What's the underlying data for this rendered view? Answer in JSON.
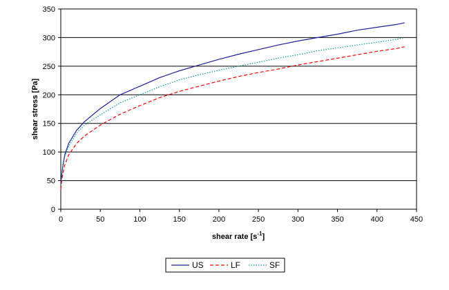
{
  "chart_data": {
    "type": "line",
    "title": "",
    "xlabel": "shear rate [s",
    "xlabel_sup": "-1",
    "xlabel_tail": "]",
    "ylabel": "shear stress [Pa]",
    "xlim": [
      0,
      450
    ],
    "ylim": [
      0,
      350
    ],
    "x_ticks": [
      "0",
      "50",
      "100",
      "150",
      "200",
      "250",
      "300",
      "350",
      "400",
      "450"
    ],
    "y_ticks": [
      "0",
      "50",
      "100",
      "150",
      "200",
      "250",
      "300",
      "350"
    ],
    "grid": "horizontal",
    "legend_position": "bottom",
    "series": [
      {
        "name": "US",
        "color": "#1f1f99",
        "style": "solid",
        "x": [
          0,
          2,
          5,
          10,
          20,
          30,
          50,
          75,
          100,
          125,
          150,
          175,
          200,
          225,
          250,
          275,
          300,
          325,
          350,
          375,
          400,
          425,
          435
        ],
        "y": [
          45,
          70,
          95,
          115,
          138,
          153,
          176,
          200,
          215,
          230,
          242,
          252,
          262,
          271,
          279,
          287,
          294,
          300,
          306,
          313,
          318,
          323,
          326
        ]
      },
      {
        "name": "LF",
        "color": "#ff0000",
        "style": "dashed",
        "x": [
          0,
          2,
          5,
          10,
          20,
          30,
          50,
          75,
          100,
          125,
          150,
          175,
          200,
          225,
          250,
          275,
          300,
          325,
          350,
          375,
          400,
          425,
          435
        ],
        "y": [
          35,
          58,
          77,
          95,
          115,
          128,
          147,
          166,
          181,
          195,
          206,
          215,
          224,
          232,
          239,
          245,
          252,
          258,
          264,
          270,
          276,
          281,
          284
        ]
      },
      {
        "name": "SF",
        "color": "#009999",
        "style": "dotted",
        "x": [
          0,
          2,
          5,
          10,
          20,
          30,
          50,
          75,
          100,
          125,
          150,
          175,
          200,
          225,
          250,
          275,
          300,
          325,
          350,
          375,
          400,
          425,
          435
        ],
        "y": [
          42,
          68,
          92,
          110,
          133,
          147,
          165,
          186,
          200,
          214,
          226,
          235,
          243,
          250,
          257,
          264,
          270,
          277,
          282,
          287,
          292,
          297,
          300
        ]
      }
    ]
  }
}
